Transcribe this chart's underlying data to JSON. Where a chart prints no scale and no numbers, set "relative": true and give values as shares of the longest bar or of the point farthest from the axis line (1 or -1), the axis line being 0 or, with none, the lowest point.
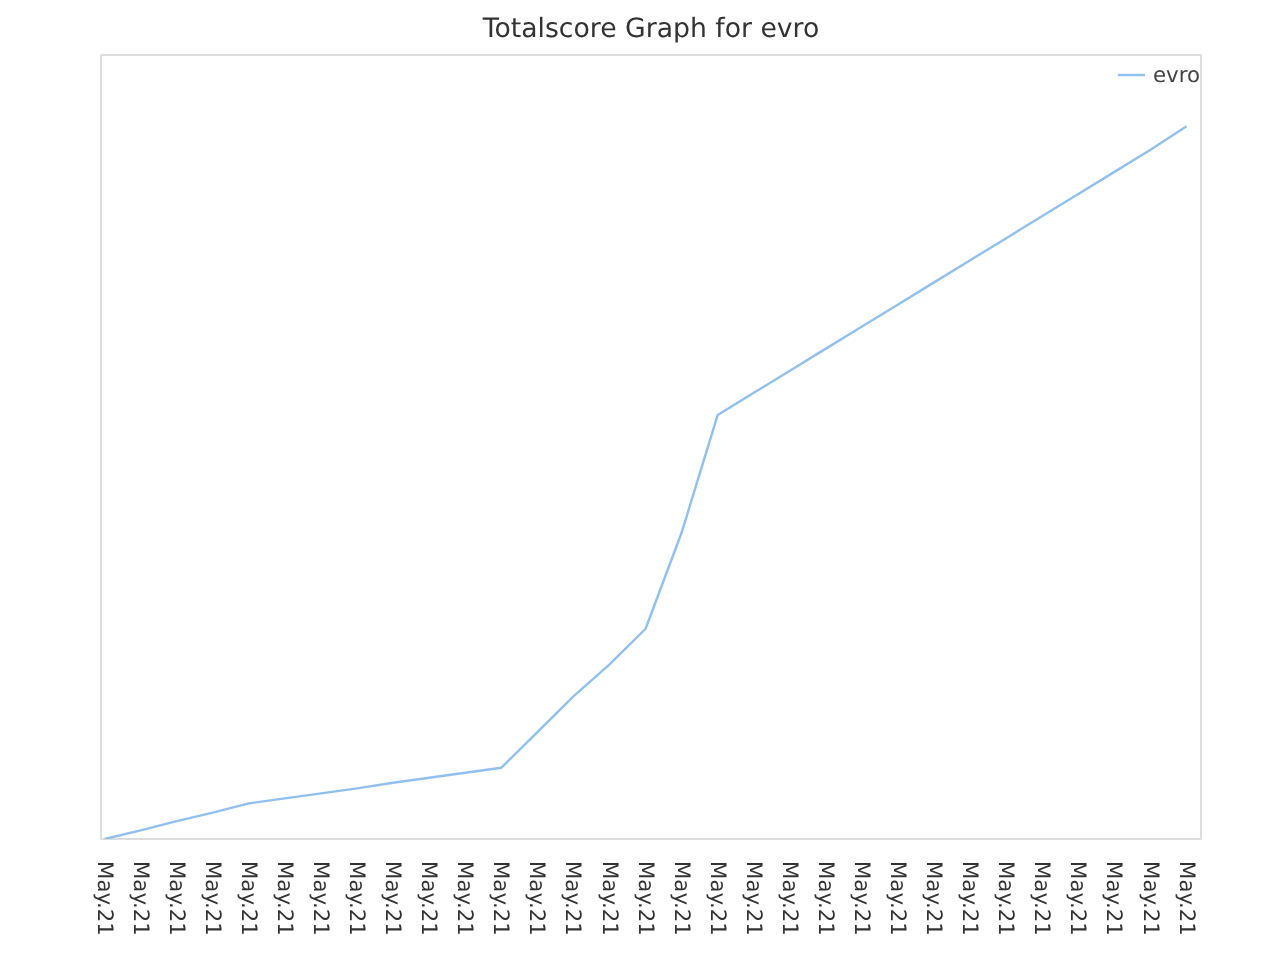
{
  "chart_data": {
    "type": "line",
    "title": "Totalscore Graph for evro",
    "relative": true,
    "categories": [
      "May.21",
      "May.21",
      "May.21",
      "May.21",
      "May.21",
      "May.21",
      "May.21",
      "May.21",
      "May.21",
      "May.21",
      "May.21",
      "May.21",
      "May.21",
      "May.21",
      "May.21",
      "May.21",
      "May.21",
      "May.21",
      "May.21",
      "May.21",
      "May.21",
      "May.21",
      "May.21",
      "May.21",
      "May.21",
      "May.21",
      "May.21",
      "May.21",
      "May.21",
      "May.21",
      "May.21"
    ],
    "series": [
      {
        "name": "evro",
        "color": "#90c0f0",
        "values": [
          0,
          0.012,
          0.025,
          0.037,
          0.05,
          0.057,
          0.064,
          0.071,
          0.079,
          0.086,
          0.093,
          0.1,
          0.15,
          0.2,
          0.245,
          0.295,
          0.43,
          0.595,
          0.626,
          0.657,
          0.688,
          0.719,
          0.75,
          0.781,
          0.812,
          0.843,
          0.874,
          0.905,
          0.936,
          0.967,
          1.0
        ]
      }
    ],
    "legend": "top right",
    "line_style": "solid"
  }
}
